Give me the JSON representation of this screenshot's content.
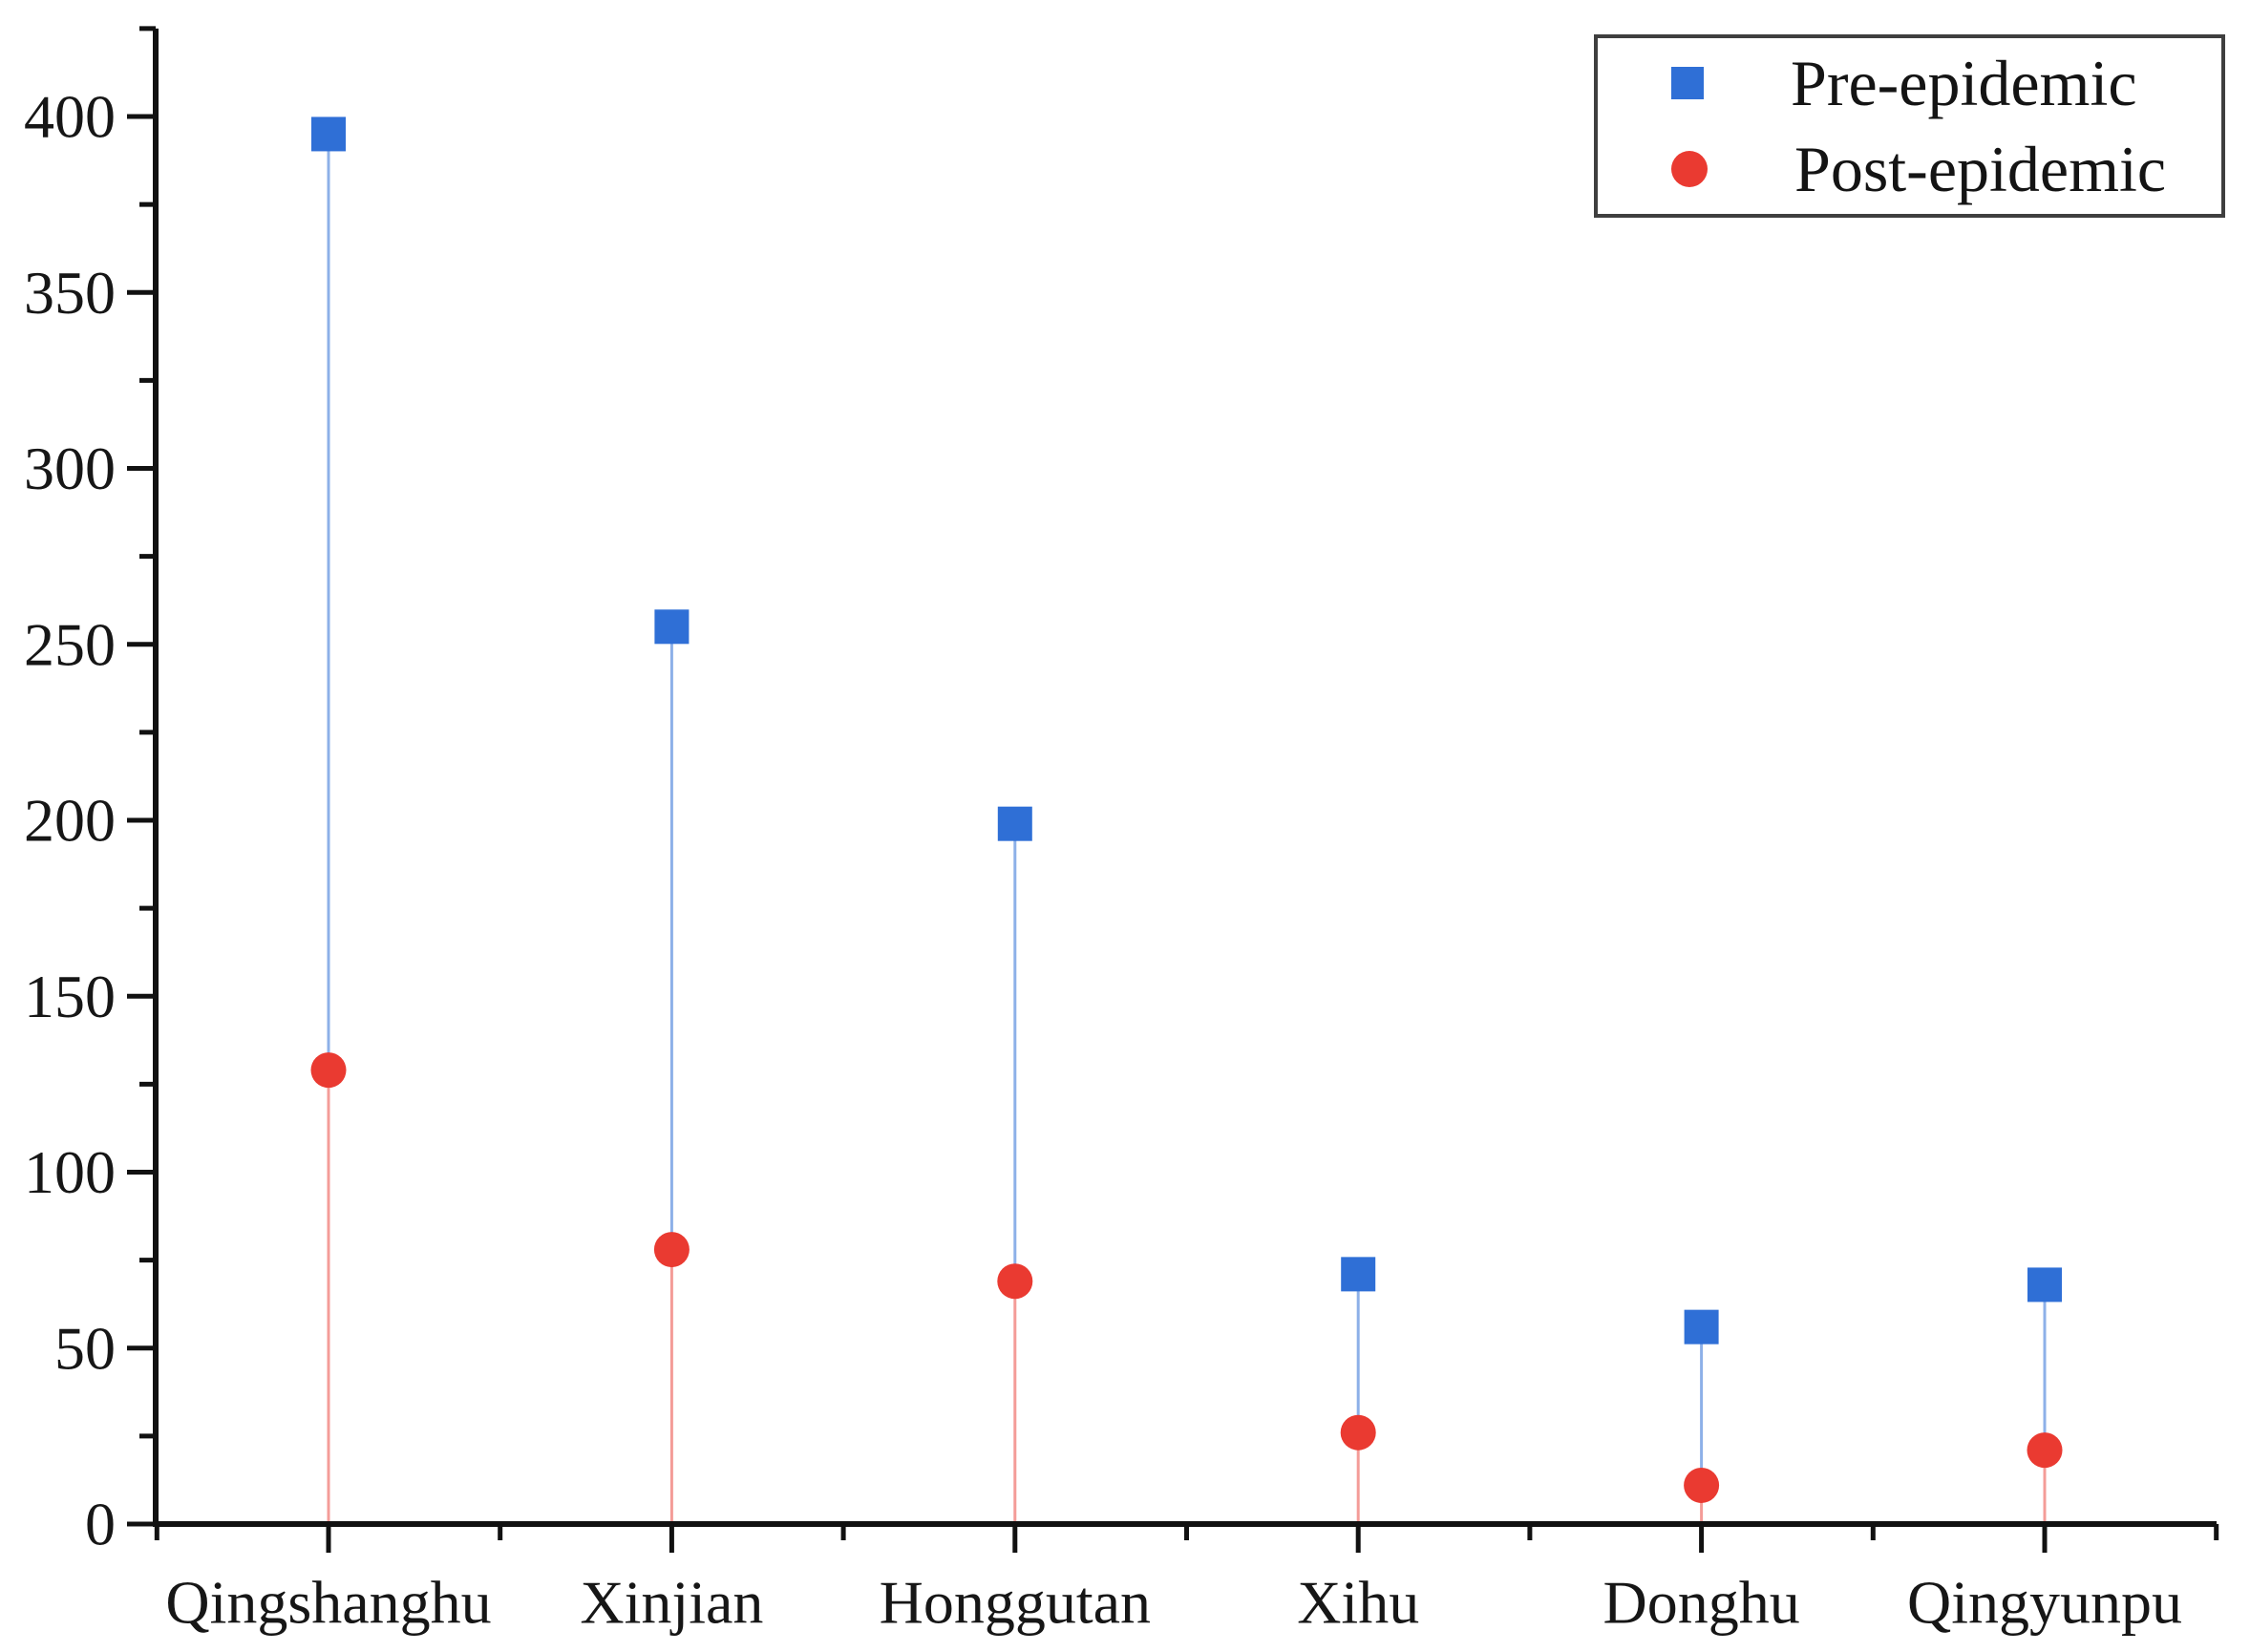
{
  "chart_data": {
    "type": "lollipop-scatter",
    "title": "",
    "xlabel": "",
    "ylabel": "",
    "categories": [
      "Qingshanghu",
      "Xinjian",
      "Honggutan",
      "Xihu",
      "Donghu",
      "Qingyunpu"
    ],
    "series": [
      {
        "name": "Pre-epidemic",
        "marker": "square",
        "color": "#2f6fd6",
        "stem_color": "#2f6fd6",
        "values": [
          395,
          255,
          199,
          71,
          56,
          68
        ]
      },
      {
        "name": "Post-epidemic",
        "marker": "circle",
        "color": "#ea3a31",
        "stem_color": "#ea3a31",
        "values": [
          129,
          78,
          69,
          26,
          11,
          21
        ]
      }
    ],
    "y_axis": {
      "min": 0,
      "max": 425,
      "major_tick_interval": 50,
      "minor_tick_interval": 25,
      "tick_labels": [
        "0",
        "50",
        "100",
        "150",
        "200",
        "250",
        "300",
        "350",
        "400"
      ]
    },
    "x_axis": {
      "major_ticks": "at each category",
      "minor_ticks": "at category midpoints"
    },
    "legend": {
      "position": "top-right",
      "border": true
    },
    "grid": false
  }
}
